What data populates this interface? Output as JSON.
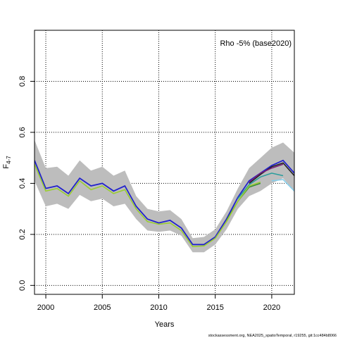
{
  "chart_data": {
    "type": "line",
    "legend_text": "Rho -5% (base2020)",
    "legend_position": "top-right",
    "xlabel": "Years",
    "ylabel_main": "F",
    "ylabel_sub": "4-7",
    "xlim": [
      1999,
      2022
    ],
    "ylim": [
      0,
      1
    ],
    "x_ticks": [
      2000,
      2005,
      2010,
      2015,
      2020
    ],
    "y_ticks": [
      0.0,
      0.2,
      0.4,
      0.6,
      0.8
    ],
    "y_tick_labels": [
      "0.0",
      "0.2",
      "0.4",
      "0.6",
      "0.8"
    ],
    "grid": "dotted",
    "confidence_band": {
      "x": [
        1999,
        2000,
        2001,
        2002,
        2003,
        2004,
        2005,
        2006,
        2007,
        2008,
        2009,
        2010,
        2011,
        2012,
        2013,
        2014,
        2015,
        2016,
        2017,
        2018,
        2019,
        2020,
        2021,
        2022
      ],
      "upper": [
        0.57,
        0.46,
        0.465,
        0.43,
        0.49,
        0.45,
        0.465,
        0.43,
        0.45,
        0.35,
        0.3,
        0.29,
        0.295,
        0.26,
        0.185,
        0.19,
        0.22,
        0.29,
        0.38,
        0.46,
        0.5,
        0.54,
        0.56,
        0.52
      ],
      "lower": [
        0.41,
        0.31,
        0.32,
        0.3,
        0.355,
        0.33,
        0.34,
        0.31,
        0.32,
        0.26,
        0.215,
        0.21,
        0.215,
        0.195,
        0.13,
        0.13,
        0.16,
        0.22,
        0.3,
        0.35,
        0.37,
        0.4,
        0.42,
        0.37
      ]
    },
    "series": [
      {
        "color": "#2222cc",
        "x": [
          1999,
          2000,
          2001,
          2002,
          2003,
          2004,
          2005,
          2006,
          2007,
          2008,
          2009,
          2010,
          2011,
          2012,
          2013,
          2014,
          2015,
          2016,
          2017,
          2018,
          2019,
          2020,
          2021,
          2022
        ],
        "values": [
          0.49,
          0.38,
          0.39,
          0.36,
          0.42,
          0.39,
          0.4,
          0.37,
          0.39,
          0.31,
          0.26,
          0.245,
          0.255,
          0.225,
          0.16,
          0.16,
          0.19,
          0.26,
          0.345,
          0.41,
          0.44,
          0.47,
          0.49,
          0.44
        ]
      },
      {
        "color": "#222222",
        "x": [
          2018,
          2019,
          2020,
          2021,
          2022
        ],
        "values": [
          0.4,
          0.435,
          0.465,
          0.48,
          0.43
        ]
      },
      {
        "color": "#7a1f7a",
        "x": [
          2018,
          2019,
          2020,
          2021
        ],
        "values": [
          0.405,
          0.44,
          0.46,
          0.475
        ]
      },
      {
        "color": "#2a9d9d",
        "x": [
          2017,
          2018,
          2019,
          2020,
          2021
        ],
        "values": [
          0.34,
          0.395,
          0.425,
          0.44,
          0.43
        ]
      },
      {
        "color": "#3a8a3a",
        "x": [
          2016,
          2017,
          2018,
          2019
        ],
        "values": [
          0.255,
          0.33,
          0.385,
          0.4
        ]
      },
      {
        "color": "#9acd32",
        "x": [
          1999,
          2000,
          2001,
          2002,
          2003,
          2004,
          2005,
          2006,
          2007,
          2008,
          2009,
          2010,
          2011,
          2012,
          2013,
          2014,
          2015,
          2016,
          2017,
          2018,
          2019
        ],
        "values": [
          0.475,
          0.37,
          0.38,
          0.35,
          0.41,
          0.375,
          0.39,
          0.36,
          0.375,
          0.3,
          0.25,
          0.24,
          0.245,
          0.215,
          0.152,
          0.155,
          0.185,
          0.25,
          0.33,
          0.39,
          0.405
        ]
      },
      {
        "color": "#87ceeb",
        "x": [
          2020,
          2021,
          2022
        ],
        "values": [
          0.41,
          0.415,
          0.37
        ]
      }
    ],
    "footer": "stockassessment.org, NEA2025_spatioTemporal, r19255, git:1cc484b8066"
  }
}
